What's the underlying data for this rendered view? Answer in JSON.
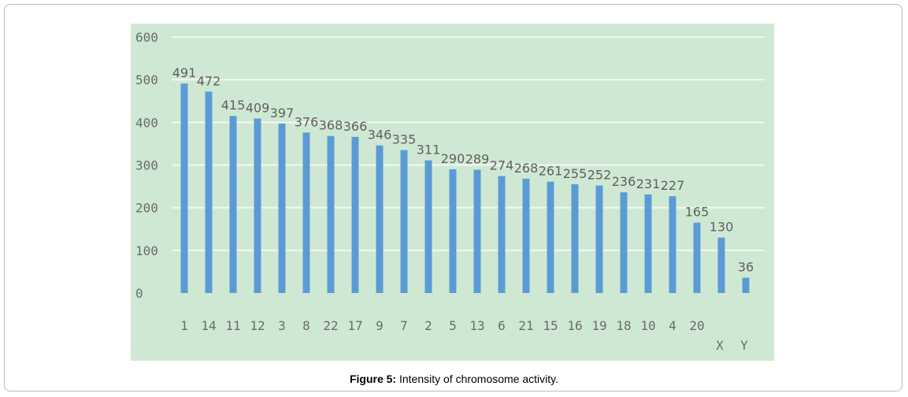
{
  "figure": {
    "label": "Figure 5:",
    "text": " Intensity of chromosome activity."
  },
  "chart_data": {
    "type": "bar",
    "title": "",
    "xlabel": "",
    "ylabel": "",
    "ylim": [
      0,
      600
    ],
    "yticks": [
      0,
      100,
      200,
      300,
      400,
      500,
      600
    ],
    "grid": true,
    "bar_color": "#5b9bd5",
    "background_color": "#cfe8d3",
    "categories": [
      "1",
      "14",
      "11",
      "12",
      "3",
      "8",
      "22",
      "17",
      "9",
      "7",
      "2",
      "5",
      "13",
      "6",
      "21",
      "15",
      "16",
      "19",
      "18",
      "10",
      "4",
      "20",
      "X",
      "Y"
    ],
    "values": [
      491,
      472,
      415,
      409,
      397,
      376,
      368,
      366,
      346,
      335,
      311,
      290,
      289,
      274,
      268,
      261,
      255,
      252,
      236,
      231,
      227,
      165,
      130,
      36
    ]
  }
}
